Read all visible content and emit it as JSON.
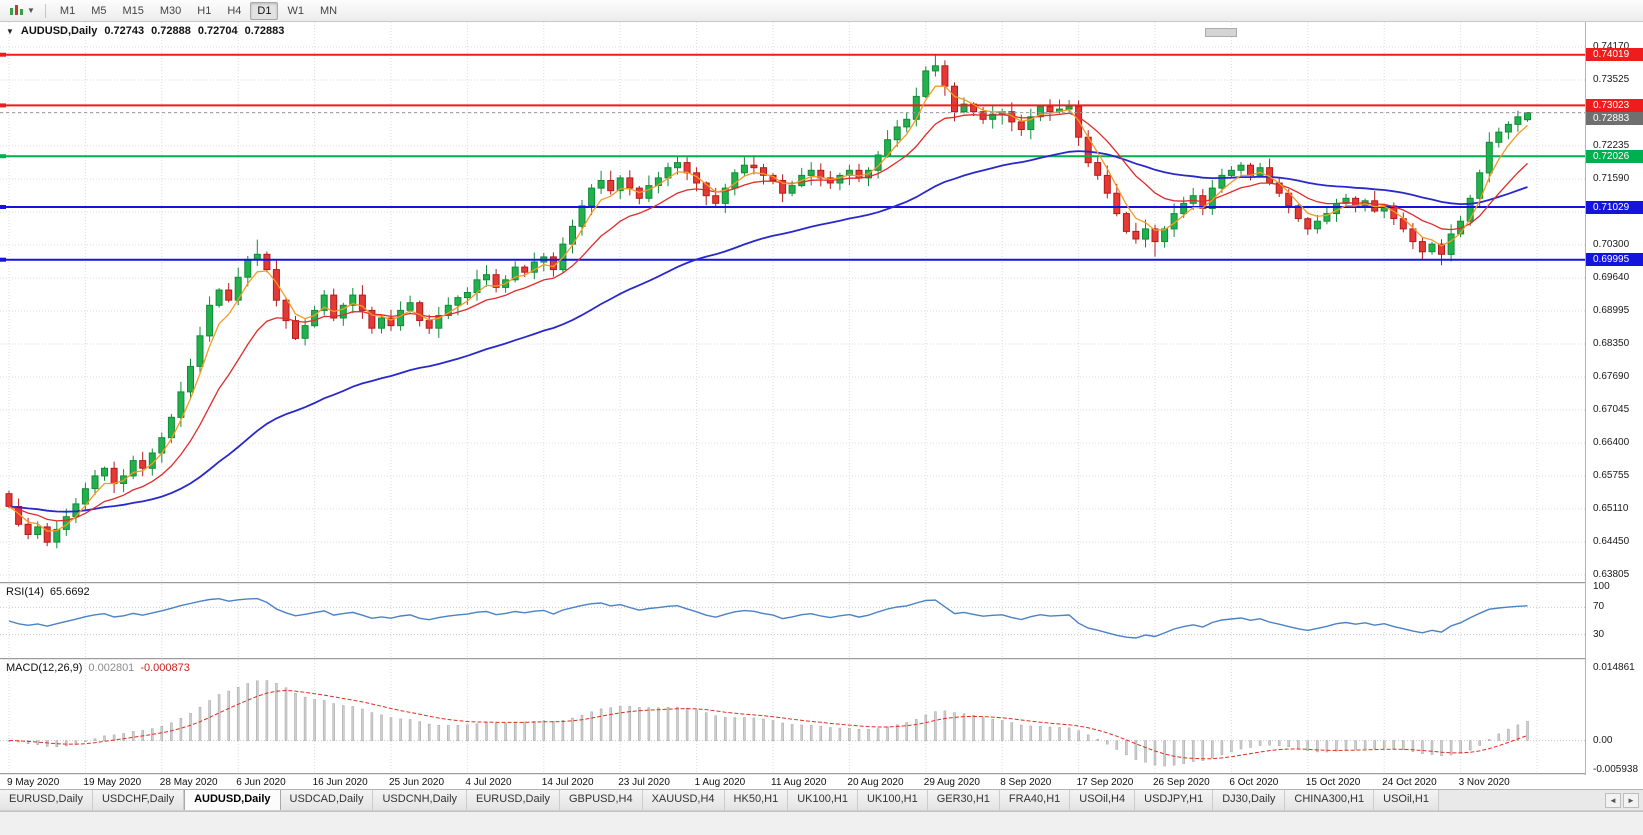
{
  "toolbar": {
    "timeframes": [
      {
        "label": "M1",
        "active": false
      },
      {
        "label": "M5",
        "active": false
      },
      {
        "label": "M15",
        "active": false
      },
      {
        "label": "M30",
        "active": false
      },
      {
        "label": "H1",
        "active": false
      },
      {
        "label": "H4",
        "active": false
      },
      {
        "label": "D1",
        "active": true
      },
      {
        "label": "W1",
        "active": false
      },
      {
        "label": "MN",
        "active": false
      }
    ]
  },
  "chart": {
    "title": {
      "symbol": "AUDUSD,Daily",
      "o": "0.72743",
      "h": "0.72888",
      "l": "0.72704",
      "c": "0.72883"
    },
    "price_axis": [
      "0.74170",
      "0.73525",
      "0.72880",
      "0.72235",
      "0.71590",
      "0.70945",
      "0.70300",
      "0.69640",
      "0.68995",
      "0.68350",
      "0.67690",
      "0.67045",
      "0.66400",
      "0.65755",
      "0.65110",
      "0.64450",
      "0.63805"
    ],
    "date_axis": [
      "9 May 2020",
      "19 May 2020",
      "28 May 2020",
      "6 Jun 2020",
      "16 Jun 2020",
      "25 Jun 2020",
      "4 Jul 2020",
      "14 Jul 2020",
      "23 Jul 2020",
      "1 Aug 2020",
      "11 Aug 2020",
      "20 Aug 2020",
      "29 Aug 2020",
      "8 Sep 2020",
      "17 Sep 2020",
      "26 Sep 2020",
      "6 Oct 2020",
      "15 Oct 2020",
      "24 Oct 2020",
      "3 Nov 2020"
    ],
    "hlines": [
      {
        "value": 0.74019,
        "label": "0.74019",
        "color": "#ee1c1c"
      },
      {
        "value": 0.73023,
        "label": "0.73023",
        "color": "#ee1c1c"
      },
      {
        "value": 0.72026,
        "label": "0.72026",
        "color": "#00b050"
      },
      {
        "value": 0.71029,
        "label": "0.71029",
        "color": "#1414dc"
      },
      {
        "value": 0.69995,
        "label": "0.69995",
        "color": "#1414dc"
      }
    ],
    "current_price": {
      "label": "0.72883",
      "value": 0.72883
    },
    "colors": {
      "bull": "#22b14c",
      "bull_border": "#128a3a",
      "bear": "#e53935",
      "bear_border": "#b21c1c",
      "ma_fast": "#f59a23",
      "ma_mid": "#e02b2b",
      "ma_slow": "#2828cc",
      "macd_signal": "#d93025",
      "cur_price_box": "#6f6f6f"
    }
  },
  "chart_data": {
    "type": "candlestick",
    "symbol": "AUDUSD",
    "period": "Daily",
    "y_range": {
      "top": 0.7417,
      "bottom": 0.63805,
      "tick_step": 0.00645
    },
    "closes": [
      0.6515,
      0.648,
      0.646,
      0.6475,
      0.6445,
      0.647,
      0.6495,
      0.652,
      0.655,
      0.6575,
      0.659,
      0.656,
      0.6575,
      0.6605,
      0.659,
      0.662,
      0.665,
      0.669,
      0.674,
      0.679,
      0.685,
      0.691,
      0.694,
      0.692,
      0.6965,
      0.7,
      0.701,
      0.698,
      0.692,
      0.688,
      0.6845,
      0.687,
      0.69,
      0.693,
      0.6885,
      0.691,
      0.693,
      0.69,
      0.6865,
      0.6885,
      0.687,
      0.69,
      0.6915,
      0.688,
      0.6865,
      0.689,
      0.691,
      0.6925,
      0.6935,
      0.696,
      0.697,
      0.6945,
      0.696,
      0.6985,
      0.6975,
      0.6995,
      0.7005,
      0.698,
      0.703,
      0.7065,
      0.7105,
      0.714,
      0.7155,
      0.7135,
      0.716,
      0.714,
      0.712,
      0.7145,
      0.716,
      0.718,
      0.719,
      0.717,
      0.715,
      0.7125,
      0.711,
      0.714,
      0.717,
      0.7185,
      0.718,
      0.7165,
      0.7155,
      0.713,
      0.7145,
      0.7165,
      0.7175,
      0.716,
      0.715,
      0.7165,
      0.7175,
      0.716,
      0.7175,
      0.7205,
      0.7235,
      0.726,
      0.7275,
      0.732,
      0.737,
      0.738,
      0.734,
      0.729,
      0.7305,
      0.729,
      0.7275,
      0.7285,
      0.729,
      0.727,
      0.7255,
      0.728,
      0.73,
      0.729,
      0.7295,
      0.73,
      0.724,
      0.719,
      0.7165,
      0.713,
      0.709,
      0.7055,
      0.704,
      0.706,
      0.7035,
      0.706,
      0.709,
      0.711,
      0.7125,
      0.71,
      0.714,
      0.7165,
      0.7175,
      0.7185,
      0.7165,
      0.718,
      0.715,
      0.713,
      0.7105,
      0.708,
      0.706,
      0.7075,
      0.709,
      0.711,
      0.712,
      0.7105,
      0.7115,
      0.7095,
      0.7105,
      0.708,
      0.706,
      0.7035,
      0.7015,
      0.703,
      0.701,
      0.705,
      0.7075,
      0.712,
      0.717,
      0.723,
      0.725,
      0.7265,
      0.728,
      0.72883
    ],
    "extremes": {
      "4": {
        "l": 0.6437
      },
      "26": {
        "h": 0.7039
      },
      "97": {
        "h": 0.74035
      },
      "120": {
        "l": 0.70055
      },
      "150": {
        "l": 0.69885
      },
      "159": {
        "o": 0.72743,
        "h": 0.72888,
        "l": 0.72704
      }
    },
    "overlays": [
      {
        "type": "ema",
        "period": 4,
        "color": "#f59a23"
      },
      {
        "type": "ema",
        "period": 12,
        "color": "#e02b2b"
      },
      {
        "type": "ema",
        "period": 45,
        "color": "#2828cc"
      }
    ]
  },
  "rsi": {
    "label": "RSI(14)",
    "value": "65.6692",
    "period": 14,
    "levels": [
      "100",
      "70",
      "30"
    ],
    "color": "#4a82c4"
  },
  "macd": {
    "label": "MACD(12,26,9)",
    "main_value": "0.002801",
    "signal_value": "-0.000873",
    "axis": [
      "0.014861",
      "0.00",
      "-0.005938"
    ],
    "fast": 12,
    "slow": 26,
    "signal_period": 9
  },
  "tabs": {
    "nav_left": "◄",
    "nav_right": "►",
    "items": [
      {
        "label": "EURUSD,Daily",
        "active": false
      },
      {
        "label": "USDCHF,Daily",
        "active": false
      },
      {
        "label": "AUDUSD,Daily",
        "active": true
      },
      {
        "label": "USDCAD,Daily",
        "active": false
      },
      {
        "label": "USDCNH,Daily",
        "active": false
      },
      {
        "label": "EURUSD,Daily",
        "active": false
      },
      {
        "label": "GBPUSD,H4",
        "active": false
      },
      {
        "label": "XAUUSD,H4",
        "active": false
      },
      {
        "label": "HK50,H1",
        "active": false
      },
      {
        "label": "UK100,H1",
        "active": false
      },
      {
        "label": "UK100,H1",
        "active": false
      },
      {
        "label": "GER30,H1",
        "active": false
      },
      {
        "label": "FRA40,H1",
        "active": false
      },
      {
        "label": "USOil,H4",
        "active": false
      },
      {
        "label": "USDJPY,H1",
        "active": false
      },
      {
        "label": "DJ30,Daily",
        "active": false
      },
      {
        "label": "CHINA300,H1",
        "active": false
      },
      {
        "label": "USOil,H1",
        "active": false
      }
    ]
  }
}
